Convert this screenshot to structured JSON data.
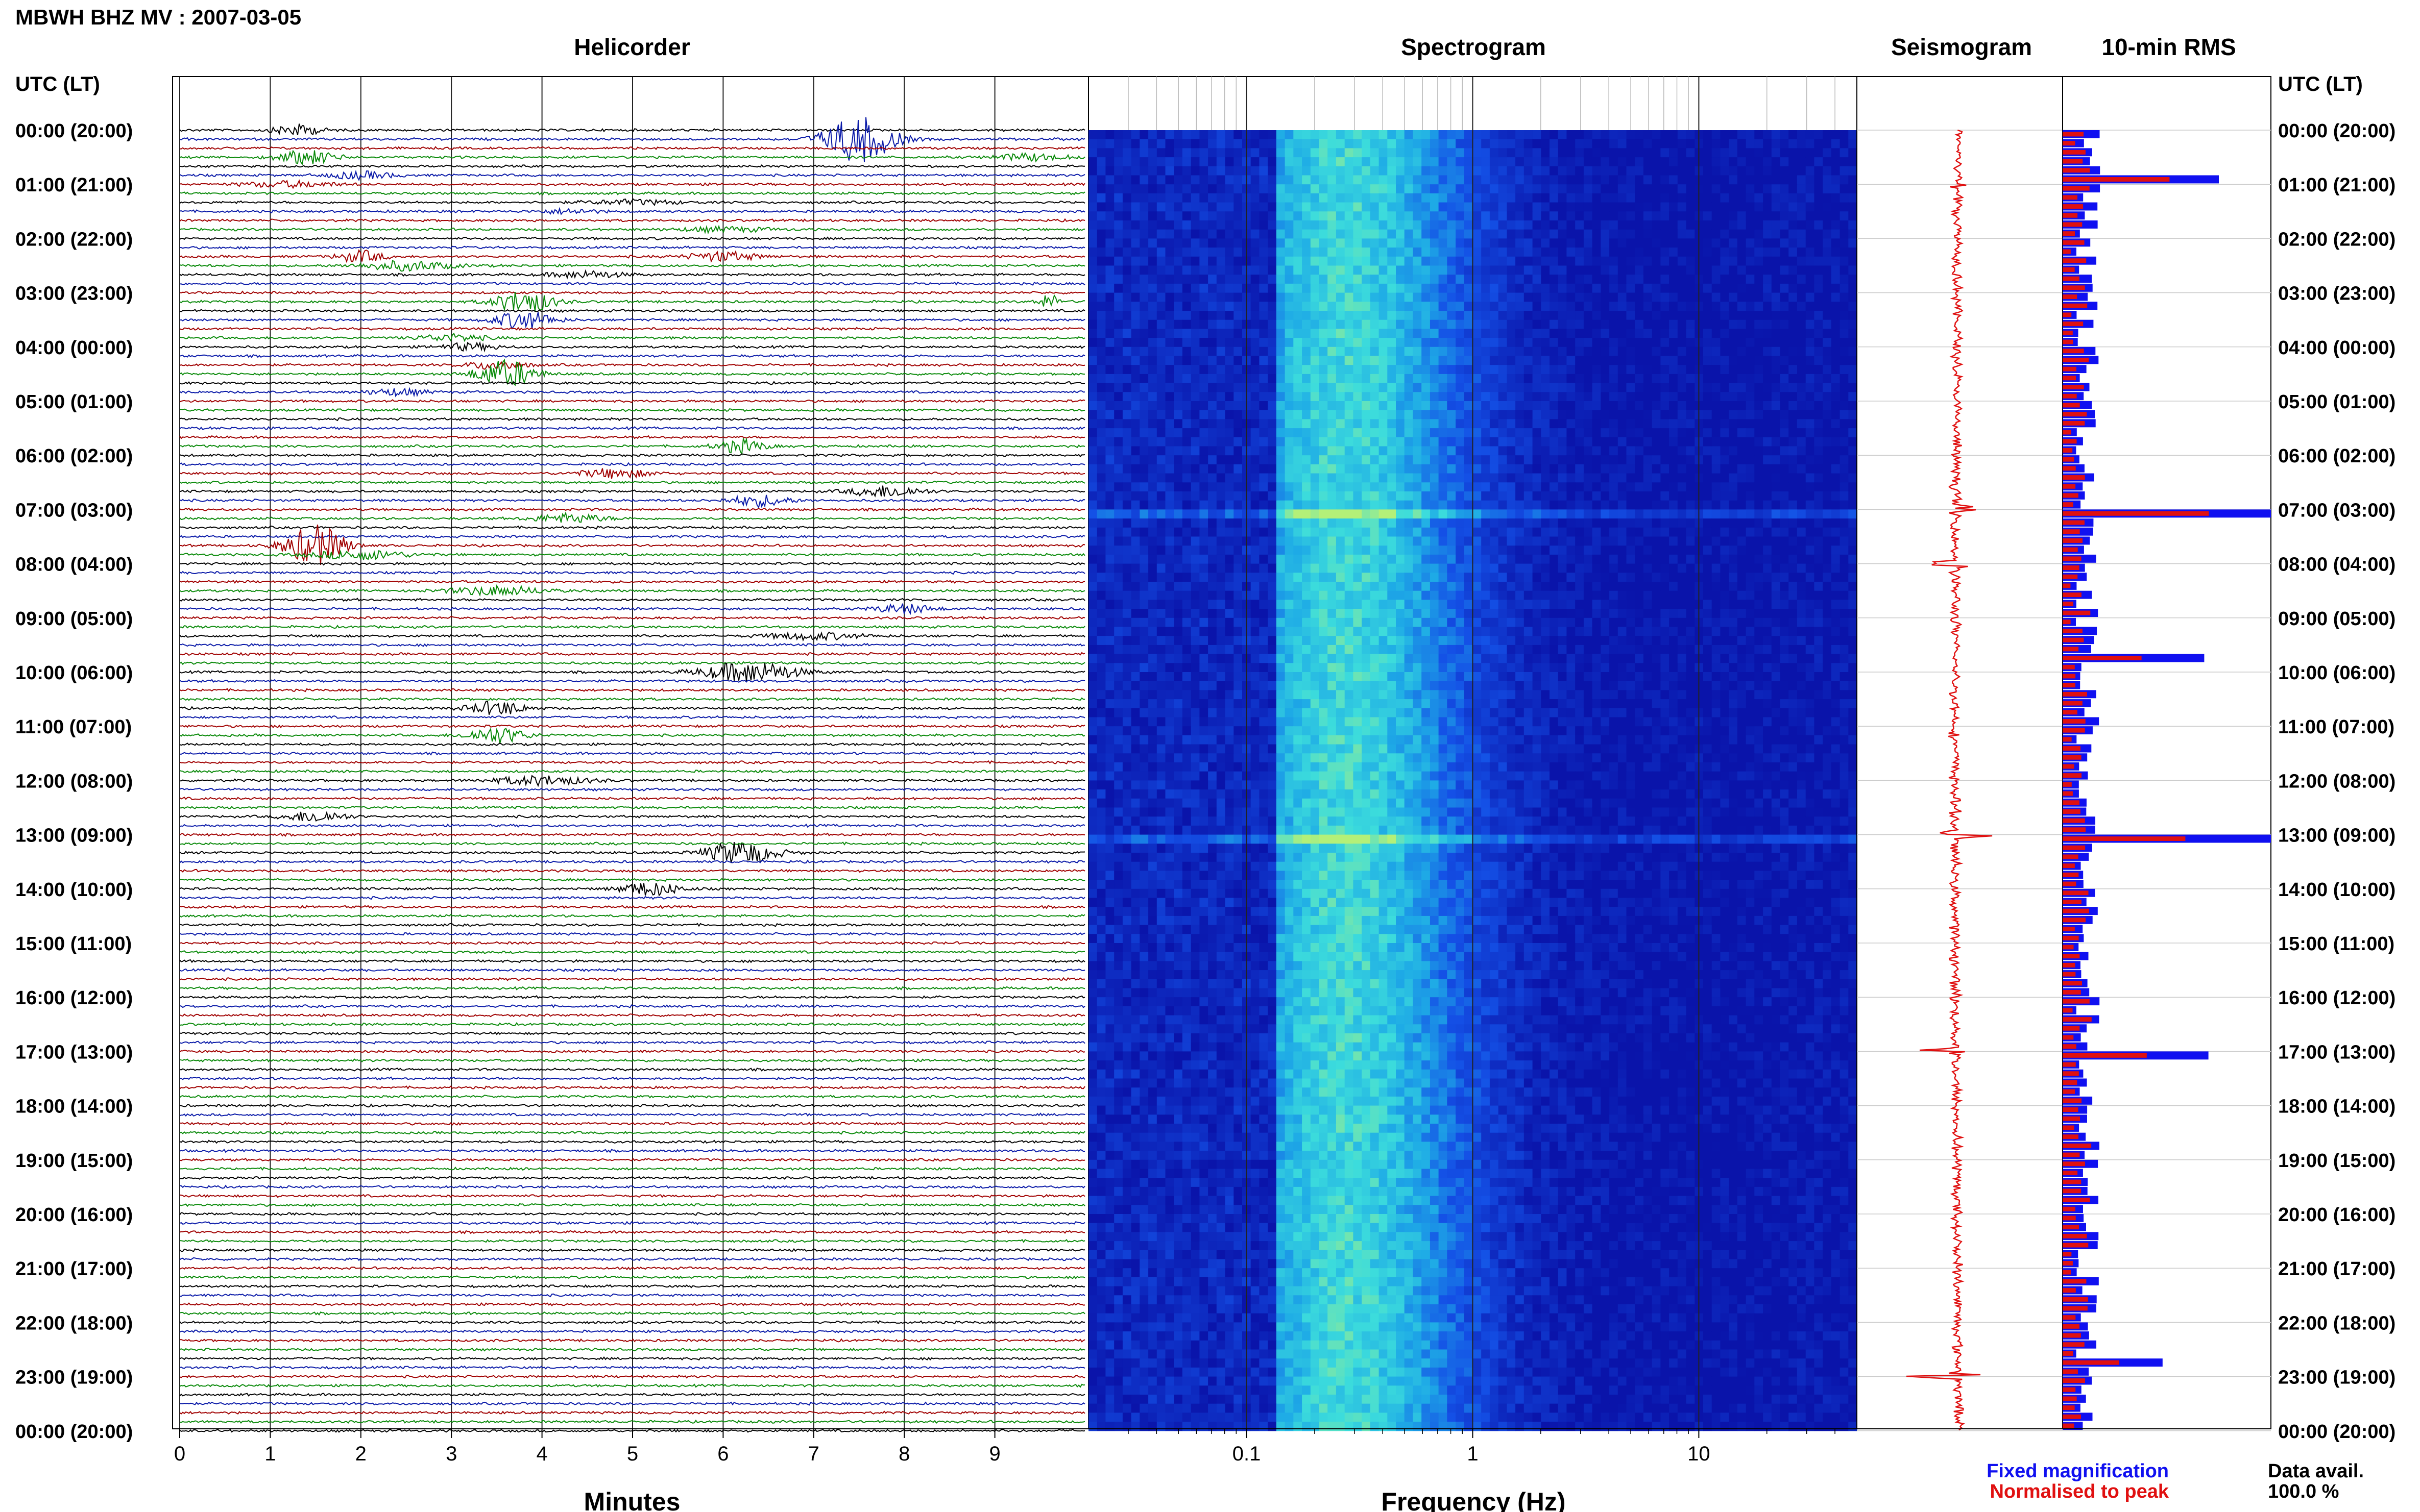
{
  "header": {
    "station_title": "MBWH BHZ MV : 2007-03-05",
    "utc_header_left": "UTC (LT)",
    "utc_header_right": "UTC (LT)"
  },
  "panels": {
    "helicorder_title": "Helicorder",
    "spectrogram_title": "Spectrogram",
    "seismogram_title": "Seismogram",
    "rms_title": "10-min RMS"
  },
  "footer": {
    "minutes_label": "Minutes",
    "frequency_label": "Frequency (Hz)",
    "fixed_magnification": "Fixed magnification",
    "normalised_to_peak": "Normalised to peak",
    "data_avail_label": "Data avail.",
    "data_avail_value": "100.0 %"
  },
  "colors": {
    "trace_black": "#000000",
    "trace_blue": "#0a1aa8",
    "trace_red": "#a00000",
    "trace_green": "#0a8a0a",
    "rms_fixed": "#1010f0",
    "rms_normalised": "#e01010",
    "seismogram": "#e01010",
    "spectrogram_low": "#0a1ab0",
    "spectrogram_high": "#b0f080"
  },
  "chart_data": [
    {
      "type": "line",
      "name": "helicorder",
      "xlabel": "Minutes",
      "x_ticks": [
        "0",
        "1",
        "2",
        "3",
        "4",
        "5",
        "6",
        "7",
        "8",
        "9"
      ],
      "xlim": [
        0,
        10
      ],
      "time_labels": [
        "00:00 (20:00)",
        "01:00 (21:00)",
        "02:00 (22:00)",
        "03:00 (23:00)",
        "04:00 (00:00)",
        "05:00 (01:00)",
        "06:00 (02:00)",
        "07:00 (03:00)",
        "08:00 (04:00)",
        "09:00 (05:00)",
        "10:00 (06:00)",
        "11:00 (07:00)",
        "12:00 (08:00)",
        "13:00 (09:00)",
        "14:00 (10:00)",
        "15:00 (11:00)",
        "16:00 (12:00)",
        "17:00 (13:00)",
        "18:00 (14:00)",
        "19:00 (15:00)",
        "20:00 (16:00)",
        "21:00 (17:00)",
        "22:00 (18:00)",
        "23:00 (19:00)",
        "00:00 (20:00)"
      ],
      "traces_per_hour": 6,
      "trace_color_cycle": [
        "black",
        "blue",
        "red",
        "green"
      ],
      "events": [
        {
          "row": 0,
          "minute": 1.3,
          "amp": 0.5,
          "dur": 0.4
        },
        {
          "row": 1,
          "minute": 7.5,
          "amp": 2.0,
          "dur": 0.6
        },
        {
          "row": 3,
          "minute": 1.4,
          "amp": 0.6,
          "dur": 0.5
        },
        {
          "row": 3,
          "minute": 9.4,
          "amp": 0.3,
          "dur": 0.6
        },
        {
          "row": 5,
          "minute": 2.0,
          "amp": 0.3,
          "dur": 0.6
        },
        {
          "row": 6,
          "minute": 1.2,
          "amp": 0.25,
          "dur": 0.8
        },
        {
          "row": 8,
          "minute": 5.0,
          "amp": 0.2,
          "dur": 0.8
        },
        {
          "row": 9,
          "minute": 4.3,
          "amp": 0.2,
          "dur": 0.5
        },
        {
          "row": 11,
          "minute": 6.0,
          "amp": 0.2,
          "dur": 0.8
        },
        {
          "row": 14,
          "minute": 2.0,
          "amp": 0.5,
          "dur": 0.4
        },
        {
          "row": 14,
          "minute": 6.0,
          "amp": 0.4,
          "dur": 0.6
        },
        {
          "row": 15,
          "minute": 2.5,
          "amp": 0.4,
          "dur": 0.8
        },
        {
          "row": 16,
          "minute": 4.5,
          "amp": 0.3,
          "dur": 0.6
        },
        {
          "row": 19,
          "minute": 3.8,
          "amp": 1.0,
          "dur": 0.5
        },
        {
          "row": 19,
          "minute": 9.6,
          "amp": 0.6,
          "dur": 0.2
        },
        {
          "row": 21,
          "minute": 3.8,
          "amp": 0.8,
          "dur": 0.5
        },
        {
          "row": 23,
          "minute": 3.0,
          "amp": 0.3,
          "dur": 0.6
        },
        {
          "row": 24,
          "minute": 3.2,
          "amp": 0.3,
          "dur": 0.5
        },
        {
          "row": 26,
          "minute": 3.5,
          "amp": 0.4,
          "dur": 0.5
        },
        {
          "row": 27,
          "minute": 3.6,
          "amp": 1.2,
          "dur": 0.5
        },
        {
          "row": 29,
          "minute": 2.4,
          "amp": 0.3,
          "dur": 0.5
        },
        {
          "row": 35,
          "minute": 6.2,
          "amp": 0.6,
          "dur": 0.4
        },
        {
          "row": 38,
          "minute": 4.8,
          "amp": 0.4,
          "dur": 0.6
        },
        {
          "row": 40,
          "minute": 7.8,
          "amp": 0.5,
          "dur": 0.6
        },
        {
          "row": 41,
          "minute": 6.4,
          "amp": 0.5,
          "dur": 0.5
        },
        {
          "row": 43,
          "minute": 4.3,
          "amp": 0.4,
          "dur": 0.6
        },
        {
          "row": 46,
          "minute": 1.5,
          "amp": 1.8,
          "dur": 0.5
        },
        {
          "row": 47,
          "minute": 2.0,
          "amp": 0.4,
          "dur": 0.8
        },
        {
          "row": 51,
          "minute": 3.5,
          "amp": 0.4,
          "dur": 0.8
        },
        {
          "row": 53,
          "minute": 8.0,
          "amp": 0.4,
          "dur": 0.5
        },
        {
          "row": 56,
          "minute": 7.0,
          "amp": 0.3,
          "dur": 0.8
        },
        {
          "row": 60,
          "minute": 6.3,
          "amp": 0.9,
          "dur": 0.8
        },
        {
          "row": 64,
          "minute": 3.5,
          "amp": 0.6,
          "dur": 0.5
        },
        {
          "row": 67,
          "minute": 3.5,
          "amp": 0.7,
          "dur": 0.5
        },
        {
          "row": 72,
          "minute": 4.0,
          "amp": 0.4,
          "dur": 0.8
        },
        {
          "row": 76,
          "minute": 1.5,
          "amp": 0.5,
          "dur": 0.5
        },
        {
          "row": 80,
          "minute": 6.2,
          "amp": 1.0,
          "dur": 0.6
        },
        {
          "row": 84,
          "minute": 5.2,
          "amp": 0.6,
          "dur": 0.5
        }
      ]
    },
    {
      "type": "heatmap",
      "name": "spectrogram",
      "xlabel": "Frequency (Hz)",
      "x_scale": "log",
      "xlim": [
        0.02,
        50
      ],
      "x_ticks": [
        "0.1",
        "1",
        "10"
      ],
      "peak_band_hz": [
        0.15,
        0.5
      ],
      "rows": 144
    },
    {
      "type": "line",
      "name": "seismogram",
      "hours": 24,
      "spikes_hour": [
        1,
        7,
        8,
        13,
        17,
        23
      ]
    },
    {
      "type": "bar",
      "name": "10-min RMS",
      "orientation": "horizontal",
      "bins": 144,
      "series": [
        {
          "name": "Fixed magnification",
          "color": "#1010f0"
        },
        {
          "name": "Normalised to peak",
          "color": "#e01010"
        }
      ],
      "xlim": [
        0,
        1
      ],
      "peaks": [
        {
          "bin": 5,
          "value": 0.75
        },
        {
          "bin": 42,
          "value": 1.0
        },
        {
          "bin": 58,
          "value": 0.68
        },
        {
          "bin": 78,
          "value": 1.0
        },
        {
          "bin": 102,
          "value": 0.7
        },
        {
          "bin": 136,
          "value": 0.48
        }
      ]
    }
  ]
}
